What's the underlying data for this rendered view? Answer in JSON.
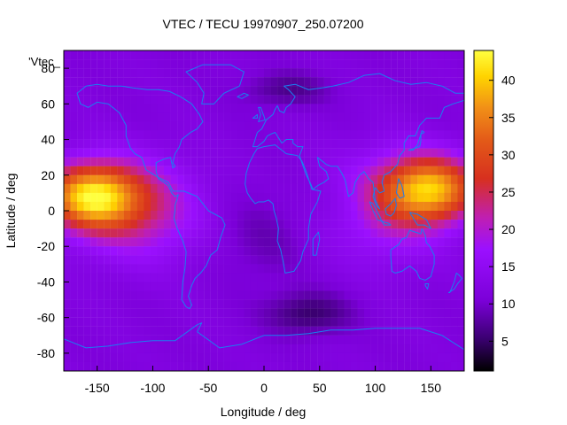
{
  "chart_data": {
    "type": "heatmap",
    "title": "VTEC / TECU 19970907_250.07200",
    "xlabel": "Longitude / deg",
    "ylabel": "Latitude / deg",
    "legend_label": "'Vtec_",
    "xlim": [
      -180,
      180
    ],
    "ylim": [
      -90,
      90
    ],
    "x_ticks": [
      -150,
      -100,
      -50,
      0,
      50,
      100,
      150
    ],
    "y_ticks": [
      -80,
      -60,
      -40,
      -20,
      0,
      20,
      40,
      60,
      80
    ],
    "colorbar": {
      "range": [
        1,
        44
      ],
      "ticks": [
        5,
        10,
        15,
        20,
        25,
        30,
        35,
        40
      ],
      "palette": [
        "#000000",
        "#3a0070",
        "#7b00d8",
        "#9b10ff",
        "#c01fb0",
        "#d7301f",
        "#e35a18",
        "#f18f17",
        "#ffd400",
        "#ffff40"
      ]
    },
    "map_overlay": {
      "type": "coastlines",
      "color": "#1a7ff0"
    },
    "grid": false
  }
}
